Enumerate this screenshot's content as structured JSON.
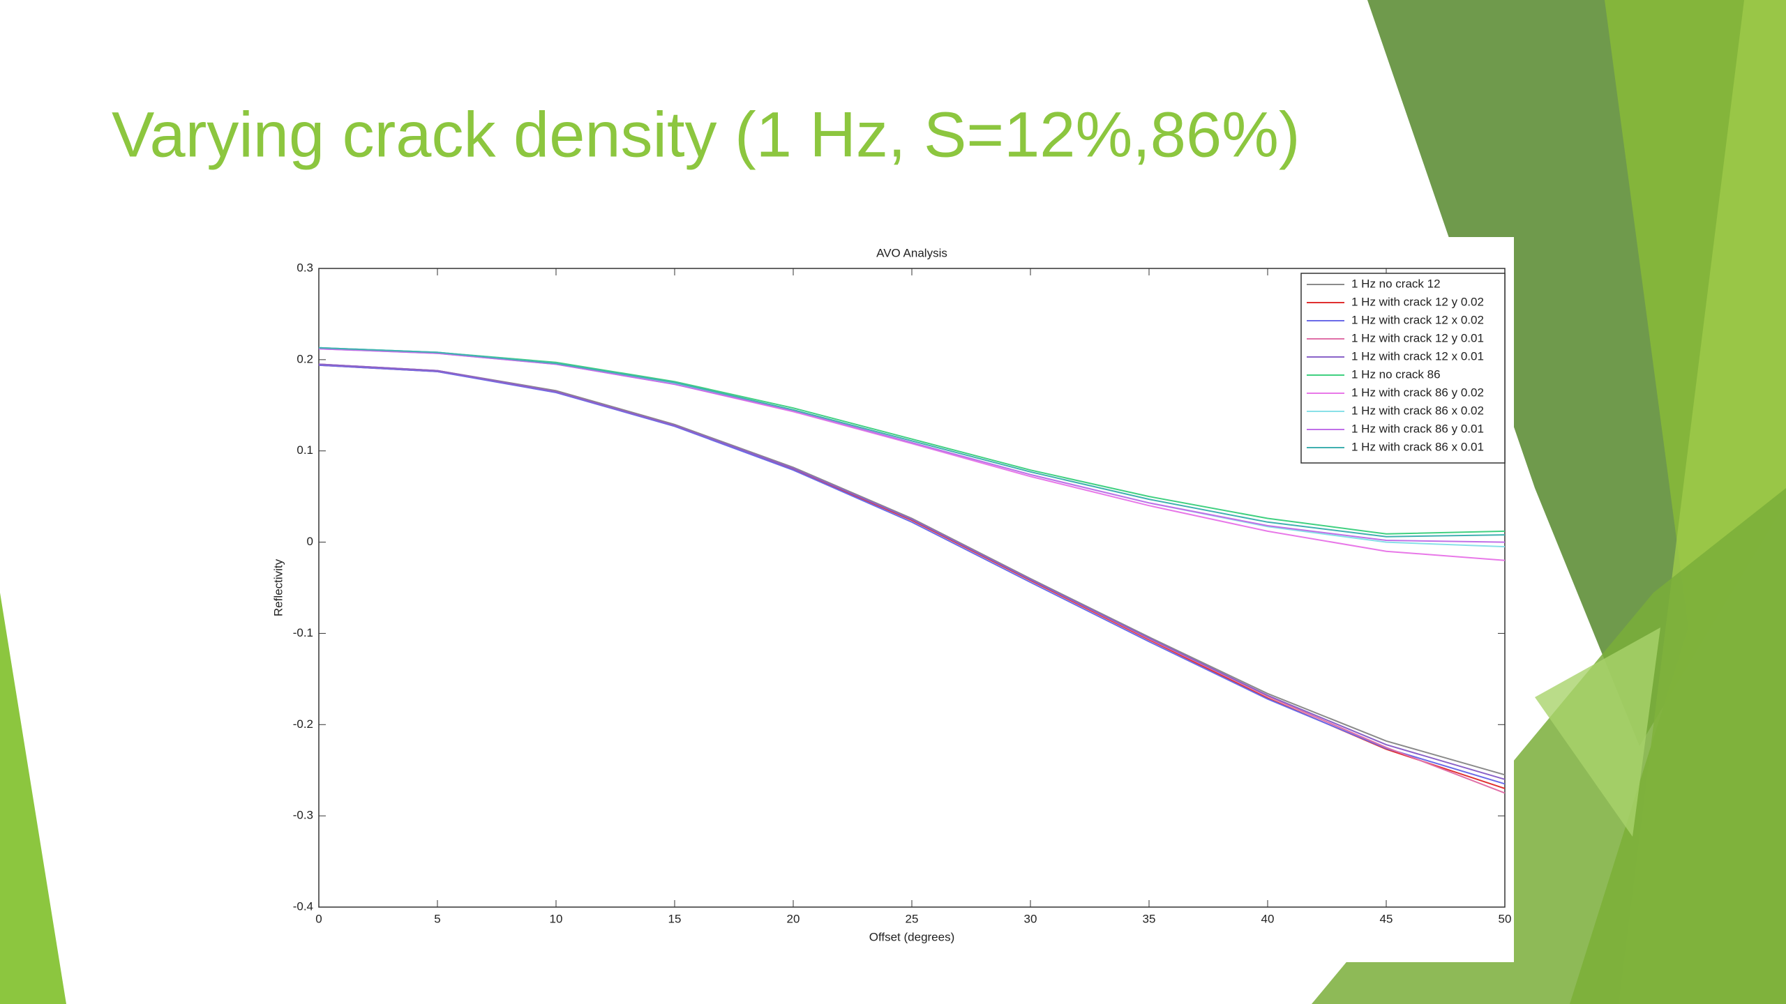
{
  "slide": {
    "title": "Varying crack density (1 Hz, S=12%,86%)"
  },
  "chart_data": {
    "type": "line",
    "title": "AVO Analysis",
    "x_label": "Offset (degrees)",
    "y_label": "Reflectivity",
    "x": [
      0,
      5,
      10,
      15,
      20,
      25,
      30,
      35,
      40,
      45,
      50
    ],
    "xlim": [
      0,
      50
    ],
    "ylim": [
      -0.4,
      0.3
    ],
    "xticks": [
      0,
      5,
      10,
      15,
      20,
      25,
      30,
      35,
      40,
      45,
      50
    ],
    "yticks": [
      -0.4,
      -0.3,
      -0.2,
      -0.1,
      0,
      0.1,
      0.2,
      0.3
    ],
    "grid": false,
    "legend": "top-right",
    "series": [
      {
        "name": "1 Hz no crack 12",
        "color": "#8a8a8a",
        "values": [
          0.195,
          0.188,
          0.166,
          0.129,
          0.082,
          0.026,
          -0.04,
          -0.104,
          -0.166,
          -0.218,
          -0.255
        ]
      },
      {
        "name": "1 Hz with crack 12 y 0.02",
        "color": "#e03030",
        "values": [
          0.194,
          0.187,
          0.165,
          0.128,
          0.08,
          0.024,
          -0.042,
          -0.107,
          -0.171,
          -0.227,
          -0.27
        ]
      },
      {
        "name": "1 Hz with crack 12 x 0.02",
        "color": "#6a6ae8",
        "values": [
          0.194,
          0.187,
          0.164,
          0.127,
          0.079,
          0.022,
          -0.044,
          -0.109,
          -0.172,
          -0.226,
          -0.265
        ]
      },
      {
        "name": "1 Hz with crack 12 y 0.01",
        "color": "#e070a8",
        "values": [
          0.195,
          0.188,
          0.165,
          0.128,
          0.081,
          0.025,
          -0.041,
          -0.106,
          -0.169,
          -0.225,
          -0.275
        ]
      },
      {
        "name": "1 Hz with crack 12 x 0.01",
        "color": "#8a62c8",
        "values": [
          0.195,
          0.188,
          0.165,
          0.128,
          0.081,
          0.025,
          -0.041,
          -0.105,
          -0.168,
          -0.222,
          -0.26
        ]
      },
      {
        "name": "1 Hz no crack 86",
        "color": "#40d080",
        "values": [
          0.213,
          0.208,
          0.197,
          0.176,
          0.147,
          0.113,
          0.079,
          0.05,
          0.026,
          0.009,
          0.012
        ]
      },
      {
        "name": "1 Hz with crack 86 y 0.02",
        "color": "#e878e8",
        "values": [
          0.212,
          0.207,
          0.195,
          0.173,
          0.143,
          0.108,
          0.072,
          0.04,
          0.012,
          -0.01,
          -0.02
        ]
      },
      {
        "name": "1 Hz with crack 86 x 0.02",
        "color": "#88e0e8",
        "values": [
          0.213,
          0.208,
          0.196,
          0.174,
          0.144,
          0.109,
          0.074,
          0.043,
          0.017,
          0.0,
          -0.005
        ]
      },
      {
        "name": "1 Hz with crack 86 y 0.01",
        "color": "#c070e8",
        "values": [
          0.212,
          0.207,
          0.195,
          0.173,
          0.144,
          0.109,
          0.074,
          0.043,
          0.018,
          0.002,
          0.0
        ]
      },
      {
        "name": "1 Hz with crack 86 x 0.01",
        "color": "#40b0b0",
        "values": [
          0.213,
          0.208,
          0.196,
          0.175,
          0.145,
          0.111,
          0.077,
          0.047,
          0.022,
          0.006,
          0.008
        ]
      }
    ]
  }
}
